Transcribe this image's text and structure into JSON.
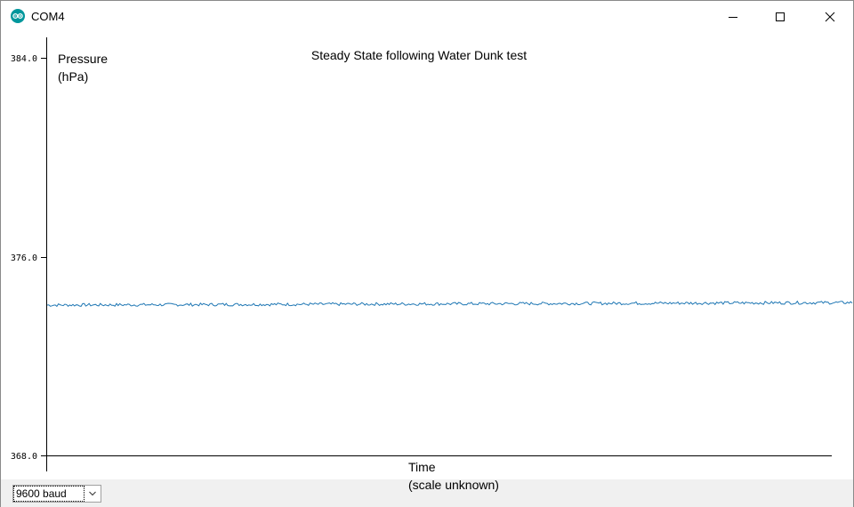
{
  "window": {
    "title": "COM4",
    "app_icon": "arduino-logo-icon",
    "controls": [
      "minimize-icon",
      "maximize-icon",
      "close-icon"
    ]
  },
  "chart_data": {
    "type": "line",
    "title": "Steady State following Water Dunk test",
    "ylabel_line1": "Pressure",
    "ylabel_line2": "(hPa)",
    "xlabel_line1": "Time",
    "xlabel_line2": "(scale unknown)",
    "ylim": [
      368.0,
      384.0
    ],
    "yticks": [
      "384.0",
      "376.0",
      "368.0"
    ],
    "ytick_values": [
      384.0,
      376.0,
      368.0
    ],
    "grid": false,
    "series": [
      {
        "color": "#1f77b4",
        "approx_level": 374.05,
        "approx_level_end": 374.15,
        "noise_amplitude": 0.06,
        "n_points": 500
      }
    ]
  },
  "bottombar": {
    "baud_value": "9600 baud",
    "dropdown_icon": "chevron-down-icon"
  }
}
